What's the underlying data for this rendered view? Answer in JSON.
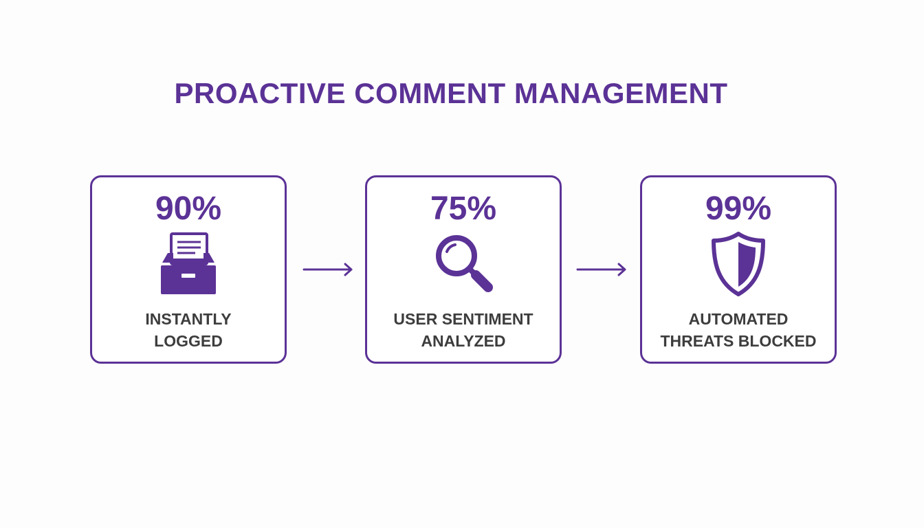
{
  "title": "PROACTIVE COMMENT MANAGEMENT",
  "accent_color": "#5b3296",
  "text_color": "#3d3d3d",
  "cards": [
    {
      "stat": "90%",
      "icon": "archive-box-icon",
      "label_line1": "INSTANTLY",
      "label_line2": "LOGGED"
    },
    {
      "stat": "75%",
      "icon": "magnifying-glass-icon",
      "label_line1": "USER SENTIMENT",
      "label_line2": "ANALYZED"
    },
    {
      "stat": "99%",
      "icon": "shield-icon",
      "label_line1": "AUTOMATED",
      "label_line2": "THREATS BLOCKED"
    }
  ],
  "connectors": [
    "arrow-right-icon",
    "arrow-right-icon"
  ]
}
